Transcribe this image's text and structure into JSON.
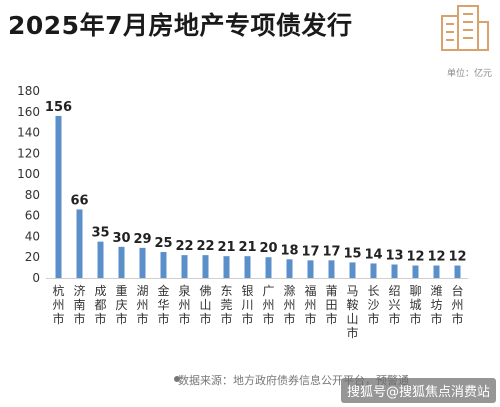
{
  "title": "2025年7月房地产专项债发行",
  "unit": "单位：亿元",
  "source": "数据来源：地方政府债券信息公开平台，预警通",
  "watermark": "搜狐号@搜狐焦点消费站",
  "colors": {
    "bar": "#5b8fc9",
    "axis": "#cfcfcf",
    "logo": "#d9a26a"
  },
  "chart_data": {
    "type": "bar",
    "title": "2025年7月房地产专项债发行",
    "ylabel": "单位：亿元",
    "ylim": [
      0,
      180
    ],
    "yticks": [
      0,
      20,
      40,
      60,
      80,
      100,
      120,
      140,
      160,
      180
    ],
    "grid": false,
    "categories": [
      "杭州市",
      "济南市",
      "成都市",
      "重庆市",
      "湖州市",
      "金华市",
      "泉州市",
      "佛山市",
      "东莞市",
      "银川市",
      "广州市",
      "滁州市",
      "福州市",
      "莆田市",
      "马鞍山市",
      "长沙市",
      "绍兴市",
      "聊城市",
      "潍坊市",
      "台州市"
    ],
    "values": [
      156,
      66,
      35,
      30,
      29,
      25,
      22,
      22,
      21,
      21,
      20,
      18,
      17,
      17,
      15,
      14,
      13,
      12,
      12,
      12
    ]
  }
}
